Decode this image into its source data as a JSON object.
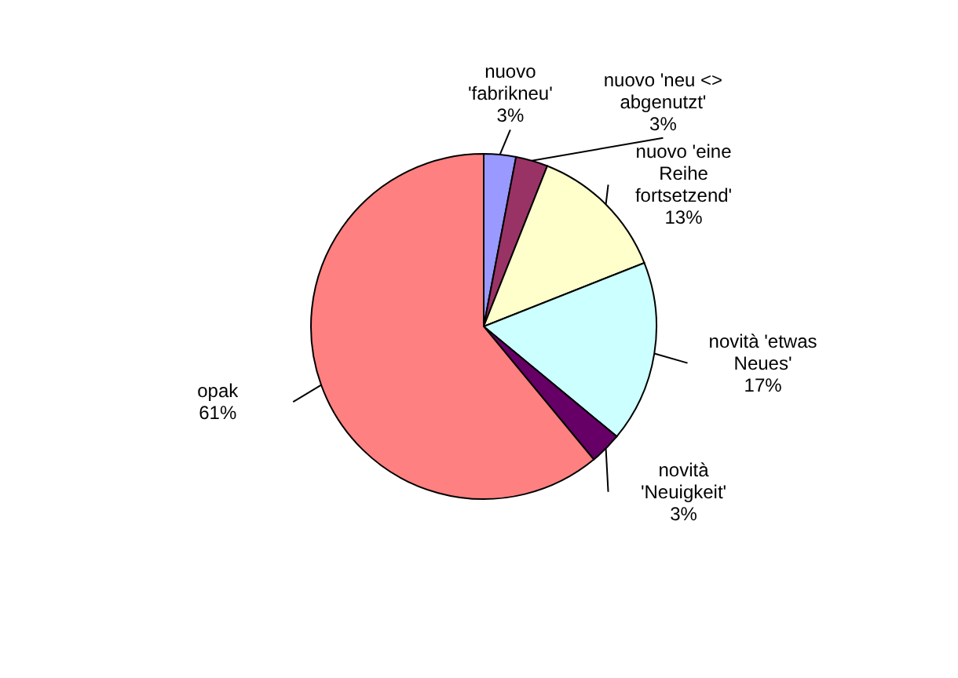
{
  "chart_data": {
    "type": "pie",
    "categories": [
      "nuovo 'fabrikneu'",
      "nuovo 'neu <> abgenutzt'",
      "nuovo 'eine Reihe fortsetzend'",
      "novità 'etwas Neues'",
      "novità 'Neuigkeit'",
      "opak"
    ],
    "values": [
      3,
      3,
      13,
      17,
      3,
      61
    ],
    "value_labels": [
      "3%",
      "3%",
      "13%",
      "17%",
      "3%",
      "61%"
    ],
    "colors": [
      "#9999ff",
      "#993366",
      "#ffffcc",
      "#ccffff",
      "#660066",
      "#ff8080"
    ]
  }
}
